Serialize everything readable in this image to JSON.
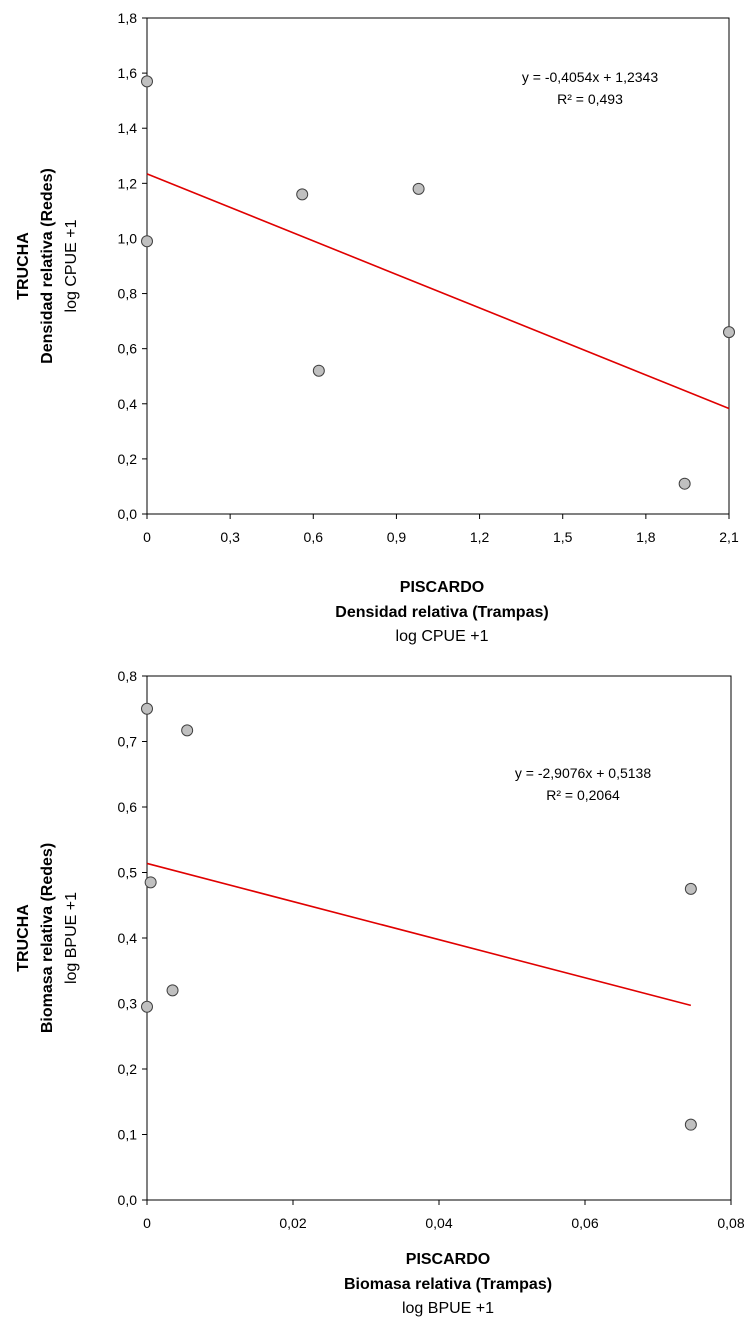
{
  "chart_data": [
    {
      "type": "scatter",
      "xlim": [
        0,
        2.1
      ],
      "ylim": [
        0,
        1.8
      ],
      "x_ticks": [
        "0",
        "0,3",
        "0,6",
        "0,9",
        "1,2",
        "1,5",
        "1,8",
        "2,1"
      ],
      "y_ticks": [
        "0,0",
        "0,2",
        "0,4",
        "0,6",
        "0,8",
        "1,0",
        "1,2",
        "1,4",
        "1,6",
        "1,8"
      ],
      "points": [
        {
          "x": 0.0,
          "y": 1.57
        },
        {
          "x": 0.0,
          "y": 0.99
        },
        {
          "x": 0.56,
          "y": 1.16
        },
        {
          "x": 0.62,
          "y": 0.52
        },
        {
          "x": 0.98,
          "y": 1.18
        },
        {
          "x": 1.94,
          "y": 0.11
        },
        {
          "x": 2.1,
          "y": 0.66
        }
      ],
      "trendline": {
        "slope": -0.4054,
        "intercept": 1.2343,
        "x_range": [
          0,
          2.1
        ]
      },
      "equation": "y = -0,4054x + 1,2343",
      "r2": "R² = 0,493",
      "xlabel": [
        "PISCARDO",
        "Densidad relativa (Trampas)",
        "log CPUE +1"
      ],
      "ylabel": [
        "TRUCHA",
        "Densidad relativa (Redes)",
        "log CPUE +1"
      ],
      "grid": false,
      "colors": {
        "marker_fill": "#c0c0c0",
        "marker_stroke": "#404040",
        "trendline": "#e00000"
      }
    },
    {
      "type": "scatter",
      "xlim": [
        0,
        0.08
      ],
      "ylim": [
        0,
        0.8
      ],
      "x_ticks": [
        "0",
        "0,02",
        "0,04",
        "0,06",
        "0,08"
      ],
      "y_ticks": [
        "0,0",
        "0,1",
        "0,2",
        "0,3",
        "0,4",
        "0,5",
        "0,6",
        "0,7",
        "0,8"
      ],
      "points": [
        {
          "x": 0.0,
          "y": 0.75
        },
        {
          "x": 0.0,
          "y": 0.295
        },
        {
          "x": 0.0005,
          "y": 0.485
        },
        {
          "x": 0.0035,
          "y": 0.32
        },
        {
          "x": 0.0055,
          "y": 0.717
        },
        {
          "x": 0.0745,
          "y": 0.475
        },
        {
          "x": 0.0745,
          "y": 0.115
        }
      ],
      "trendline": {
        "slope": -2.9076,
        "intercept": 0.5138,
        "x_range": [
          0,
          0.0745
        ]
      },
      "equation": "y = -2,9076x + 0,5138",
      "r2": "R² = 0,2064",
      "xlabel": [
        "PISCARDO",
        "Biomasa relativa (Trampas)",
        "log BPUE +1"
      ],
      "ylabel": [
        "TRUCHA",
        "Biomasa relativa (Redes)",
        "log BPUE +1"
      ],
      "grid": false,
      "colors": {
        "marker_fill": "#c0c0c0",
        "marker_stroke": "#404040",
        "trendline": "#e00000"
      }
    }
  ]
}
